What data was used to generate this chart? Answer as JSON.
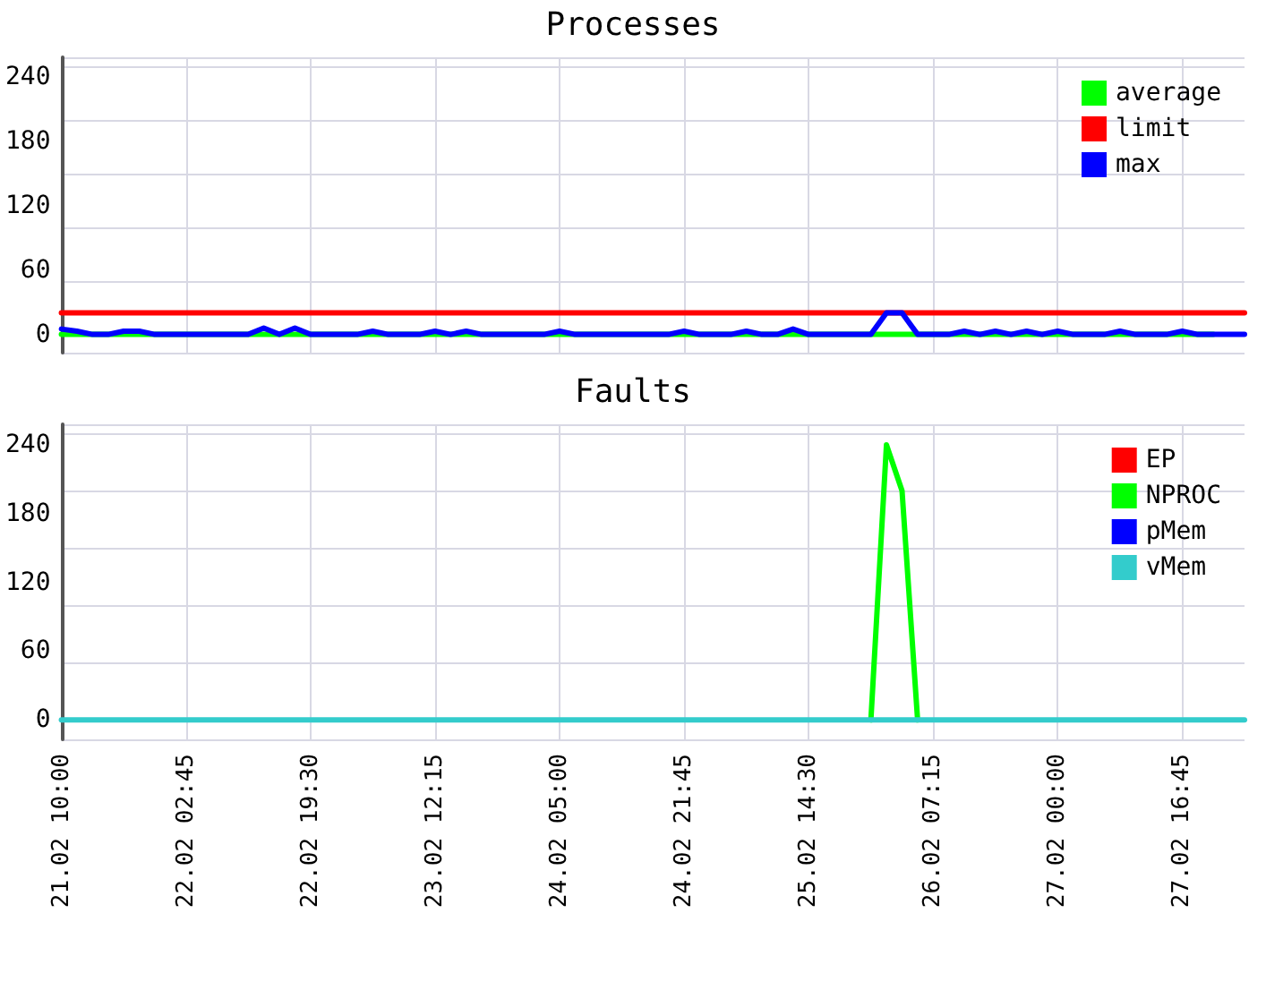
{
  "chart_data": [
    {
      "type": "line",
      "title": "Processes",
      "categories": [
        null,
        null,
        null,
        null,
        null,
        null,
        null,
        null,
        null,
        null,
        null,
        null,
        null,
        null,
        null,
        null,
        null,
        null,
        null,
        null,
        null,
        null,
        null,
        null,
        null,
        null,
        null,
        null,
        null,
        null,
        null,
        null,
        null,
        null,
        null,
        null,
        null,
        null,
        null,
        null,
        null,
        null,
        null,
        null,
        null,
        null,
        null,
        null,
        null,
        null,
        null,
        null,
        null,
        null,
        null,
        null,
        null,
        null,
        null,
        null,
        null,
        null,
        null,
        null,
        null,
        null,
        null,
        null,
        null,
        null,
        null,
        null,
        null,
        null,
        null,
        null,
        null
      ],
      "ylim": [
        -17,
        258
      ],
      "yticks": [
        0,
        60,
        120,
        180,
        240
      ],
      "tick_labels": "y",
      "grid": true,
      "legend": "top right",
      "marker": "none",
      "series": [
        {
          "name": "average",
          "color": "#00ff00",
          "values": [
            0,
            0,
            0,
            0,
            0,
            0,
            0,
            0,
            0,
            0,
            0,
            0,
            0,
            0,
            0,
            0,
            0,
            0,
            0,
            0,
            0,
            0,
            0,
            0,
            0,
            0,
            0,
            0,
            0,
            0,
            0,
            0,
            0,
            0,
            0,
            0,
            0,
            0,
            0,
            0,
            0,
            0,
            0,
            0,
            0,
            0,
            0,
            0,
            0,
            0,
            0,
            0,
            0,
            0,
            0,
            0,
            0,
            0,
            0,
            0,
            0,
            0,
            0,
            0,
            0,
            0,
            0,
            0,
            0,
            0,
            0,
            0,
            0,
            0,
            0,
            null,
            null
          ]
        },
        {
          "name": "limit",
          "color": "#ff0000",
          "values": [
            20,
            20,
            20,
            20,
            20,
            20,
            20,
            20,
            20,
            20,
            20,
            20,
            20,
            20,
            20,
            20,
            20,
            20,
            20,
            20,
            20,
            20,
            20,
            20,
            20,
            20,
            20,
            20,
            20,
            20,
            20,
            20,
            20,
            20,
            20,
            20,
            20,
            20,
            20,
            20,
            20,
            20,
            20,
            20,
            20,
            20,
            20,
            20,
            20,
            20,
            20,
            20,
            20,
            20,
            20,
            20,
            20,
            20,
            20,
            20,
            20,
            20,
            20,
            20,
            20,
            20,
            20,
            20,
            20,
            20,
            20,
            20,
            20,
            20,
            20,
            20,
            20
          ]
        },
        {
          "name": "max",
          "color": "#0000ff",
          "values": [
            5,
            3,
            0,
            0,
            3,
            3,
            0,
            0,
            0,
            0,
            0,
            0,
            0,
            6,
            0,
            6,
            0,
            0,
            0,
            0,
            3,
            0,
            0,
            0,
            3,
            0,
            3,
            0,
            0,
            0,
            0,
            0,
            3,
            0,
            0,
            0,
            0,
            0,
            0,
            0,
            3,
            0,
            0,
            0,
            3,
            0,
            0,
            5,
            0,
            0,
            0,
            0,
            0,
            20,
            20,
            0,
            0,
            0,
            3,
            0,
            3,
            0,
            3,
            0,
            3,
            0,
            0,
            0,
            3,
            0,
            0,
            0,
            3,
            0,
            0,
            0,
            0
          ]
        }
      ]
    },
    {
      "type": "line",
      "title": "Faults",
      "categories": [
        "21.02 10:00",
        null,
        null,
        null,
        null,
        null,
        null,
        null,
        "22.02 02:45",
        null,
        null,
        null,
        null,
        null,
        null,
        null,
        "22.02 19:30",
        null,
        null,
        null,
        null,
        null,
        null,
        null,
        "23.02 12:15",
        null,
        null,
        null,
        null,
        null,
        null,
        null,
        "24.02 05:00",
        null,
        null,
        null,
        null,
        null,
        null,
        null,
        "24.02 21:45",
        null,
        null,
        null,
        null,
        null,
        null,
        null,
        "25.02 14:30",
        null,
        null,
        null,
        null,
        null,
        null,
        null,
        "26.02 07:15",
        null,
        null,
        null,
        null,
        null,
        null,
        null,
        "27.02 00:00",
        null,
        null,
        null,
        null,
        null,
        null,
        null,
        "27.02 16:45",
        null,
        null,
        null,
        null
      ],
      "ylim": [
        -17,
        258
      ],
      "yticks": [
        0,
        60,
        120,
        180,
        240
      ],
      "grid": true,
      "legend": "top right",
      "marker": "none",
      "series": [
        {
          "name": "EP",
          "color": "#ff0000",
          "values": [
            null,
            null,
            null,
            null,
            null,
            null,
            null,
            null,
            null,
            null,
            null,
            null,
            null,
            null,
            null,
            null,
            null,
            null,
            null,
            null,
            null,
            null,
            null,
            null,
            null,
            null,
            null,
            null,
            null,
            null,
            null,
            null,
            null,
            null,
            null,
            null,
            null,
            null,
            null,
            null,
            null,
            null,
            null,
            null,
            null,
            null,
            null,
            null,
            null,
            null,
            null,
            null,
            null,
            null,
            null,
            null,
            null,
            null,
            null,
            null,
            null,
            null,
            null,
            null,
            null,
            null,
            null,
            null,
            null,
            null,
            null,
            null,
            null,
            null,
            null,
            null,
            null
          ]
        },
        {
          "name": "NPROC",
          "color": "#00ff00",
          "values": [
            null,
            null,
            null,
            null,
            null,
            null,
            null,
            null,
            null,
            null,
            null,
            null,
            null,
            null,
            null,
            null,
            null,
            null,
            null,
            null,
            null,
            null,
            null,
            null,
            null,
            null,
            null,
            null,
            null,
            null,
            null,
            null,
            null,
            null,
            null,
            null,
            null,
            null,
            null,
            null,
            null,
            null,
            null,
            null,
            null,
            null,
            null,
            null,
            null,
            null,
            null,
            null,
            0,
            240,
            200,
            0,
            null,
            null,
            null,
            null,
            null,
            null,
            null,
            null,
            null,
            null,
            null,
            null,
            null,
            null,
            null,
            null,
            null,
            null,
            null,
            null,
            null
          ]
        },
        {
          "name": "pMem",
          "color": "#0000ff",
          "values": [
            null,
            null,
            null,
            null,
            null,
            null,
            null,
            null,
            null,
            null,
            null,
            null,
            null,
            null,
            null,
            null,
            null,
            null,
            null,
            null,
            null,
            null,
            null,
            null,
            null,
            null,
            null,
            null,
            null,
            null,
            null,
            null,
            null,
            null,
            null,
            null,
            null,
            null,
            null,
            null,
            null,
            null,
            null,
            null,
            null,
            null,
            null,
            null,
            null,
            null,
            null,
            null,
            null,
            null,
            null,
            null,
            null,
            null,
            null,
            null,
            null,
            null,
            null,
            null,
            null,
            null,
            null,
            null,
            null,
            null,
            null,
            null,
            null,
            null,
            null,
            null,
            null
          ]
        },
        {
          "name": "vMem",
          "color": "#33cccc",
          "values": [
            0,
            0,
            0,
            0,
            0,
            0,
            0,
            0,
            0,
            0,
            0,
            0,
            0,
            0,
            0,
            0,
            0,
            0,
            0,
            0,
            0,
            0,
            0,
            0,
            0,
            0,
            0,
            0,
            0,
            0,
            0,
            0,
            0,
            0,
            0,
            0,
            0,
            0,
            0,
            0,
            0,
            0,
            0,
            0,
            0,
            0,
            0,
            0,
            0,
            0,
            0,
            0,
            0,
            0,
            0,
            0,
            0,
            0,
            0,
            0,
            0,
            0,
            0,
            0,
            0,
            0,
            0,
            0,
            0,
            0,
            0,
            0,
            0,
            0,
            0,
            0,
            0
          ]
        }
      ]
    }
  ]
}
